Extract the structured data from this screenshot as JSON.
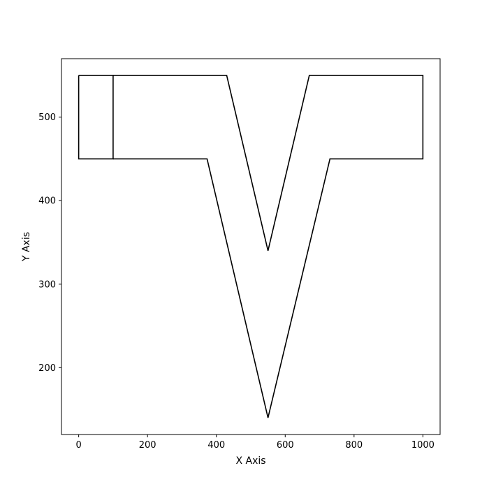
{
  "chart_data": {
    "type": "line",
    "title": "",
    "xlabel": "X Axis",
    "ylabel": "Y Axis",
    "xlim": [
      -50,
      1050
    ],
    "ylim": [
      120,
      570
    ],
    "xticks": [
      0,
      200,
      400,
      600,
      800,
      1000
    ],
    "yticks": [
      200,
      300,
      400,
      500
    ],
    "grid": false,
    "series": [
      {
        "color": "#000000",
        "points": [
          [
            0,
            550
          ],
          [
            100,
            550
          ],
          [
            100,
            450
          ],
          [
            0,
            450
          ],
          [
            0,
            550
          ]
        ]
      },
      {
        "color": "#000000",
        "points": [
          [
            100,
            550
          ],
          [
            430,
            550
          ],
          [
            550,
            340
          ],
          [
            670,
            550
          ],
          [
            1000,
            550
          ],
          [
            1000,
            450
          ],
          [
            730,
            450
          ],
          [
            550,
            140
          ],
          [
            373,
            450
          ],
          [
            100,
            450
          ]
        ]
      }
    ]
  }
}
